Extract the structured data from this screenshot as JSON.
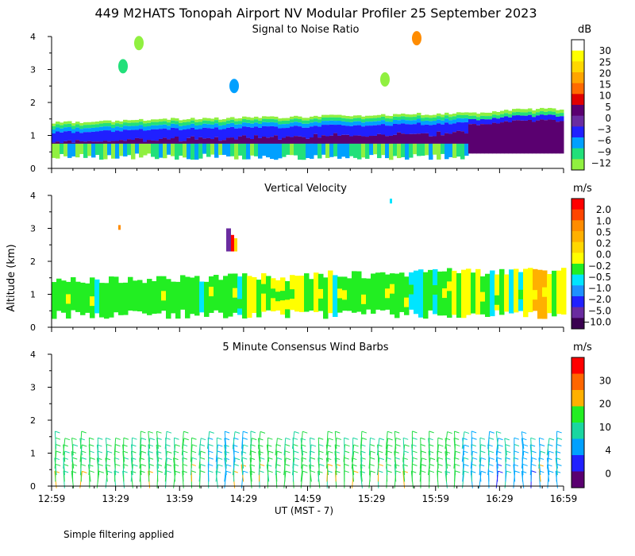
{
  "figure_title": "449 M2HATS Tonopah Airport NV Modular Profiler 25 September 2023",
  "ylabel": "Altitude (km)",
  "xlabel": "UT  (MST - 7)",
  "footnote": "Simple filtering applied",
  "x_ticks": [
    "12:59",
    "13:29",
    "13:59",
    "14:29",
    "14:59",
    "15:29",
    "15:59",
    "16:29",
    "16:59"
  ],
  "y_ticks": [
    "0",
    "1",
    "2",
    "3",
    "4"
  ],
  "panels": [
    {
      "title": "Signal to Noise Ratio",
      "unit": "dB",
      "colorbar_labels": [
        "30",
        "25",
        "20",
        "15",
        "10",
        "5",
        "0",
        "−3",
        "−6",
        "−9",
        "−12"
      ],
      "colors": [
        "#ffffff",
        "#ffff00",
        "#ffd700",
        "#ffa500",
        "#ff6a00",
        "#e00000",
        "#5a0070",
        "#6a2ca0",
        "#2020ff",
        "#00a0ff",
        "#22e07a",
        "#90f040"
      ]
    },
    {
      "title": "Vertical Velocity",
      "unit": "m/s",
      "colorbar_labels": [
        "2.0",
        "1.0",
        "0.5",
        "0.2",
        "0.0",
        "−0.2",
        "−0.5",
        "−1.0",
        "−2.0",
        "−5.0",
        "−10.0"
      ],
      "colors": [
        "#ff0000",
        "#ff4500",
        "#ff8c00",
        "#ffb000",
        "#ffd700",
        "#ffff00",
        "#22ee22",
        "#00e5ff",
        "#1e90ff",
        "#2020ff",
        "#6a2ca0",
        "#3a0050"
      ]
    },
    {
      "title": "5 Minute Consensus Wind Barbs",
      "unit": "m/s",
      "colorbar_labels": [
        "30",
        "20",
        "10",
        "4",
        "0"
      ],
      "colors": [
        "#ff0000",
        "#ff6600",
        "#ffb000",
        "#22ee22",
        "#1ad6a0",
        "#00a0ff",
        "#2020ff",
        "#5a0070"
      ]
    }
  ],
  "chart_data": [
    {
      "type": "heatmap",
      "title": "Signal to Noise Ratio",
      "x_range": [
        "12:59",
        "16:59"
      ],
      "ylim": [
        0,
        4
      ],
      "ylabel": "Altitude (km)",
      "colorbar_unit": "dB",
      "colorbar_levels": [
        30,
        25,
        20,
        15,
        10,
        5,
        0,
        -3,
        -6,
        -9,
        -12
      ],
      "layer_top_km": [
        1.4,
        1.4,
        1.45,
        1.5,
        1.5,
        1.55,
        1.55,
        1.6,
        1.6,
        1.65,
        1.65,
        1.7,
        1.8,
        1.8
      ],
      "layer_times": [
        "12:59",
        "13:17",
        "13:35",
        "13:53",
        "14:11",
        "14:29",
        "14:47",
        "15:05",
        "15:23",
        "15:41",
        "15:59",
        "16:17",
        "16:35",
        "16:59"
      ]
    },
    {
      "type": "heatmap",
      "title": "Vertical Velocity",
      "x_range": [
        "12:59",
        "16:59"
      ],
      "ylim": [
        0,
        4
      ],
      "ylabel": "Altitude (km)",
      "colorbar_unit": "m/s",
      "colorbar_levels": [
        2.0,
        1.0,
        0.5,
        0.2,
        0.0,
        -0.2,
        -0.5,
        -1.0,
        -2.0,
        -5.0,
        -10.0
      ],
      "layer_top_km": [
        1.5,
        1.5,
        1.55,
        1.6,
        1.6,
        1.65,
        1.6,
        1.7,
        1.7,
        1.75,
        1.8,
        1.75,
        1.8,
        1.8
      ]
    },
    {
      "type": "scatter",
      "title": "5 Minute Consensus Wind Barbs",
      "x_range": [
        "12:59",
        "16:59"
      ],
      "ylim": [
        0,
        4
      ],
      "ylabel": "Altitude (km)",
      "colorbar_unit": "m/s",
      "colorbar_levels": [
        30,
        20,
        10,
        4,
        0
      ],
      "barb_heights_km": [
        0.2,
        0.4,
        0.6,
        0.8,
        1.0,
        1.2,
        1.4
      ],
      "barb_interval_min": 5
    }
  ]
}
